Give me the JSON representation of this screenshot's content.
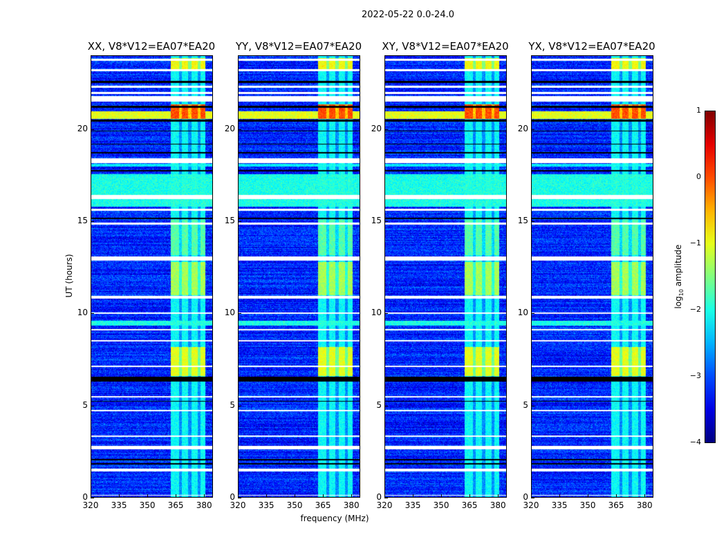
{
  "chart_data": {
    "type": "heatmap",
    "suptitle": "2022-05-22 0.0-24.0",
    "panels": [
      {
        "title": "XX, V8*V12=EA07*EA20"
      },
      {
        "title": "YY, V8*V12=EA07*EA20"
      },
      {
        "title": "XY, V8*V12=EA07*EA20"
      },
      {
        "title": "YX, V8*V12=EA07*EA20"
      }
    ],
    "xlabel": "frequency (MHz)",
    "ylabel": "UT (hours)",
    "xlim": [
      320,
      384.7
    ],
    "ylim": [
      0,
      24
    ],
    "xticks": [
      320,
      335,
      350,
      365,
      380
    ],
    "yticks": [
      0,
      5,
      10,
      15,
      20
    ],
    "colorbar": {
      "label": "log10 amplitude",
      "label_main": "log",
      "label_sub": "10",
      "label_rest": " amplitude",
      "range": [
        -4,
        1
      ],
      "ticks": [
        1,
        0,
        -1,
        -2,
        -3,
        -4
      ],
      "colormap": "jet"
    },
    "background_level": -3.2,
    "band": {
      "start": 362.5,
      "end": 381,
      "dips": [
        367.5,
        372.5,
        377.5
      ]
    },
    "band_levels": [
      {
        "start": 23.3,
        "end": 23.9,
        "level": -0.9
      },
      {
        "start": 20.6,
        "end": 21.4,
        "level": 0.0
      },
      {
        "start": 13.2,
        "end": 15.1,
        "level": -1.7
      },
      {
        "start": 11.0,
        "end": 12.8,
        "level": -1.3
      },
      {
        "start": 6.6,
        "end": 8.2,
        "level": -1.0
      },
      {
        "start": 0,
        "end": 24,
        "level": -2.1
      }
    ],
    "broadband": [
      {
        "start": 20.6,
        "end": 21.0,
        "level": -1.0
      },
      {
        "start": 15.8,
        "end": 17.6,
        "level": -2.0
      },
      {
        "start": 18.0,
        "end": 18.15,
        "level": -2.2
      },
      {
        "start": 9.35,
        "end": 9.6,
        "level": -2.0
      }
    ],
    "flagged": [
      [
        23.75,
        23.85
      ],
      [
        23.2,
        23.3
      ],
      [
        22.3,
        22.4
      ],
      [
        21.95,
        22.05
      ],
      [
        21.55,
        21.85
      ],
      [
        18.2,
        18.45
      ],
      [
        16.25,
        16.45
      ],
      [
        15.6,
        15.7
      ],
      [
        14.85,
        14.95
      ],
      [
        12.9,
        13.1
      ],
      [
        10.8,
        10.95
      ],
      [
        10.0,
        10.05
      ],
      [
        9.1,
        9.15
      ],
      [
        8.5,
        8.55
      ],
      [
        7.1,
        7.15
      ],
      [
        5.45,
        5.5
      ],
      [
        4.7,
        4.75
      ],
      [
        3.3,
        3.35
      ],
      [
        2.6,
        2.8
      ],
      [
        1.4,
        1.55
      ],
      [
        0.1,
        0.15
      ]
    ],
    "dark": [
      [
        22.55,
        22.65
      ],
      [
        21.2,
        21.3
      ],
      [
        20.45,
        20.55
      ],
      [
        19.9,
        19.95
      ],
      [
        19.2,
        19.25
      ],
      [
        18.7,
        18.8
      ],
      [
        17.75,
        17.8
      ],
      [
        15.15,
        15.2
      ],
      [
        6.3,
        6.55
      ],
      [
        5.2,
        5.25
      ],
      [
        2.0,
        2.1
      ],
      [
        1.8,
        1.85
      ]
    ]
  }
}
